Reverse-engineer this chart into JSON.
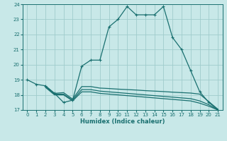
{
  "xlabel": "Humidex (Indice chaleur)",
  "background_color": "#c8e8e8",
  "grid_color": "#a0cccc",
  "line_color": "#1a7070",
  "xlim": [
    -0.5,
    21.5
  ],
  "ylim": [
    17,
    24
  ],
  "xticks": [
    0,
    1,
    2,
    3,
    4,
    5,
    6,
    7,
    8,
    9,
    10,
    11,
    12,
    13,
    14,
    15,
    16,
    17,
    18,
    19,
    20,
    21
  ],
  "yticks": [
    17,
    18,
    19,
    20,
    21,
    22,
    23,
    24
  ],
  "line1_x": [
    0,
    1,
    2,
    3,
    4,
    5,
    6,
    7,
    8,
    9,
    10,
    11,
    12,
    13,
    14,
    15,
    16,
    17,
    18,
    19,
    20,
    21
  ],
  "line1_y": [
    19.0,
    18.7,
    18.6,
    18.1,
    17.5,
    17.65,
    19.9,
    20.3,
    20.3,
    22.5,
    23.0,
    23.85,
    23.3,
    23.3,
    23.3,
    23.85,
    21.8,
    21.0,
    19.6,
    18.2,
    17.5,
    17.0
  ],
  "line2_x": [
    2,
    3,
    4,
    5,
    6,
    7,
    8,
    9,
    10,
    11,
    12,
    13,
    14,
    15,
    16,
    17,
    18,
    19,
    20,
    21
  ],
  "line2_y": [
    18.6,
    18.1,
    18.15,
    17.72,
    18.55,
    18.55,
    18.45,
    18.42,
    18.38,
    18.35,
    18.32,
    18.28,
    18.25,
    18.22,
    18.18,
    18.15,
    18.12,
    18.05,
    17.55,
    17.05
  ],
  "line3_x": [
    2,
    3,
    4,
    5,
    6,
    7,
    8,
    9,
    10,
    11,
    12,
    13,
    14,
    15,
    16,
    17,
    18,
    19,
    20,
    21
  ],
  "line3_y": [
    18.55,
    18.05,
    18.05,
    17.65,
    18.35,
    18.35,
    18.25,
    18.2,
    18.15,
    18.1,
    18.05,
    18.0,
    17.95,
    17.9,
    17.85,
    17.8,
    17.75,
    17.6,
    17.35,
    17.0
  ],
  "line4_x": [
    2,
    3,
    4,
    5,
    6,
    7,
    8,
    9,
    10,
    11,
    12,
    13,
    14,
    15,
    16,
    17,
    18,
    19,
    20,
    21
  ],
  "line4_y": [
    18.5,
    18.0,
    18.0,
    17.6,
    18.2,
    18.2,
    18.1,
    18.05,
    18.0,
    17.95,
    17.9,
    17.85,
    17.8,
    17.75,
    17.7,
    17.65,
    17.6,
    17.45,
    17.25,
    17.0
  ]
}
